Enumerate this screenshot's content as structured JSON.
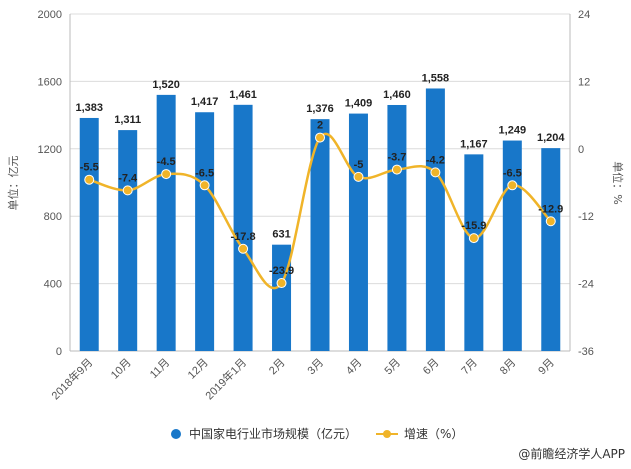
{
  "colors": {
    "bar": "#1877c9",
    "line": "#f0b429",
    "grid": "#dcdcdc",
    "text": "#555555"
  },
  "chart_data": {
    "type": "bar+line",
    "categories": [
      "2018年9月",
      "10月",
      "11月",
      "12月",
      "2019年1月",
      "2月",
      "3月",
      "4月",
      "5月",
      "6月",
      "7月",
      "8月",
      "9月"
    ],
    "series": [
      {
        "name": "中国家电行业市场规模（亿元）",
        "type": "bar",
        "axis": "left",
        "values": [
          1383,
          1311,
          1520,
          1417,
          1461,
          631,
          1376,
          1409,
          1460,
          1558,
          1167,
          1249,
          1204
        ],
        "labels": [
          "1,383",
          "1,311",
          "1,520",
          "1,417",
          "1,461",
          "631",
          "1,376",
          "1,409",
          "1,460",
          "1,558",
          "1,167",
          "1,249",
          "1,204"
        ]
      },
      {
        "name": "增速（%）",
        "type": "line",
        "axis": "right",
        "values": [
          -5.5,
          -7.4,
          -4.5,
          -6.5,
          -17.8,
          -23.9,
          2,
          -5,
          -3.7,
          -4.2,
          -15.9,
          -6.5,
          -12.9
        ],
        "labels": [
          "-5.5",
          "-7.4",
          "-4.5",
          "-6.5",
          "-17.8",
          "-23.9",
          "2",
          "-5",
          "-3.7",
          "-4.2",
          "-15.9",
          "-6.5",
          "-12.9"
        ]
      }
    ],
    "left_axis": {
      "label": "单位：亿元",
      "min": 0,
      "max": 2000,
      "ticks": [
        "0",
        "400",
        "800",
        "1200",
        "1600",
        "2000"
      ]
    },
    "right_axis": {
      "label": "单位：%",
      "min": -36,
      "max": 24,
      "ticks": [
        "-36",
        "-24",
        "-12",
        "0",
        "12",
        "24"
      ]
    },
    "grid": true,
    "legend": "bottom",
    "legend_items": [
      "中国家电行业市场规模（亿元）",
      "增速（%）"
    ]
  },
  "source": "@前瞻经济学人APP"
}
